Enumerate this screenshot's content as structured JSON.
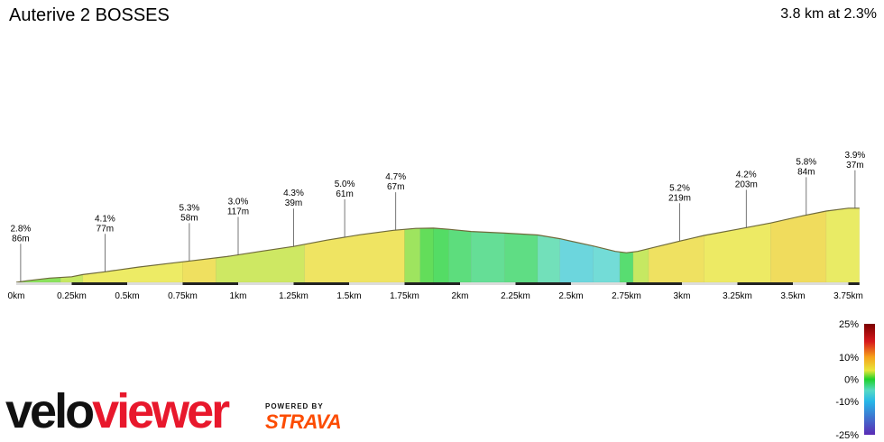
{
  "header": {
    "title": "Auterive 2 BOSSES",
    "summary": "3.8 km at 2.3%"
  },
  "chart_data": {
    "type": "area",
    "title": "Auterive 2 BOSSES",
    "xlabel": "",
    "ylabel": "",
    "x_unit": "km",
    "xlim": [
      0,
      3.8
    ],
    "x_ticks": [
      "0km",
      "0.25km",
      "0.5km",
      "0.75km",
      "1km",
      "1.25km",
      "1.5km",
      "1.75km",
      "2km",
      "2.25km",
      "2.5km",
      "2.75km",
      "3km",
      "3.25km",
      "3.5km",
      "3.75km"
    ],
    "profile": [
      [
        0.0,
        0.0
      ],
      [
        0.05,
        0.7
      ],
      [
        0.15,
        1.8
      ],
      [
        0.25,
        2.4
      ],
      [
        0.3,
        3.3
      ],
      [
        0.4,
        4.5
      ],
      [
        0.55,
        6.5
      ],
      [
        0.7,
        8.2
      ],
      [
        0.8,
        9.3
      ],
      [
        0.95,
        11.0
      ],
      [
        1.1,
        13.2
      ],
      [
        1.25,
        15.3
      ],
      [
        1.4,
        18.0
      ],
      [
        1.55,
        20.3
      ],
      [
        1.7,
        22.2
      ],
      [
        1.8,
        23.0
      ],
      [
        1.88,
        23.1
      ],
      [
        1.95,
        22.6
      ],
      [
        2.05,
        21.7
      ],
      [
        2.2,
        21.0
      ],
      [
        2.35,
        20.2
      ],
      [
        2.45,
        18.6
      ],
      [
        2.6,
        15.5
      ],
      [
        2.7,
        13.2
      ],
      [
        2.75,
        12.6
      ],
      [
        2.8,
        13.2
      ],
      [
        2.9,
        15.5
      ],
      [
        3.0,
        17.8
      ],
      [
        3.1,
        20.0
      ],
      [
        3.25,
        22.6
      ],
      [
        3.4,
        25.3
      ],
      [
        3.55,
        28.5
      ],
      [
        3.65,
        30.4
      ],
      [
        3.75,
        31.6
      ],
      [
        3.8,
        31.6
      ]
    ],
    "segments": [
      {
        "from": 0.0,
        "to": 0.2,
        "gradient_pct": 1.5
      },
      {
        "from": 0.2,
        "to": 0.3,
        "gradient_pct": 3.0
      },
      {
        "from": 0.3,
        "to": 0.75,
        "gradient_pct": 4.0
      },
      {
        "from": 0.75,
        "to": 0.9,
        "gradient_pct": 5.3
      },
      {
        "from": 0.9,
        "to": 1.3,
        "gradient_pct": 3.2
      },
      {
        "from": 1.3,
        "to": 1.75,
        "gradient_pct": 4.8
      },
      {
        "from": 1.75,
        "to": 1.82,
        "gradient_pct": 2.0
      },
      {
        "from": 1.82,
        "to": 1.88,
        "gradient_pct": 0.5
      },
      {
        "from": 1.88,
        "to": 1.95,
        "gradient_pct": -0.5
      },
      {
        "from": 1.95,
        "to": 2.05,
        "gradient_pct": -1.5
      },
      {
        "from": 2.05,
        "to": 2.2,
        "gradient_pct": -2.5
      },
      {
        "from": 2.2,
        "to": 2.35,
        "gradient_pct": -1.8
      },
      {
        "from": 2.35,
        "to": 2.45,
        "gradient_pct": -4.0
      },
      {
        "from": 2.45,
        "to": 2.6,
        "gradient_pct": -7.0
      },
      {
        "from": 2.6,
        "to": 2.72,
        "gradient_pct": -6.0
      },
      {
        "from": 2.72,
        "to": 2.78,
        "gradient_pct": -1.0
      },
      {
        "from": 2.78,
        "to": 2.85,
        "gradient_pct": 3.0
      },
      {
        "from": 2.85,
        "to": 3.1,
        "gradient_pct": 5.2
      },
      {
        "from": 3.1,
        "to": 3.4,
        "gradient_pct": 4.2
      },
      {
        "from": 3.4,
        "to": 3.65,
        "gradient_pct": 5.8
      },
      {
        "from": 3.65,
        "to": 3.8,
        "gradient_pct": 3.9
      }
    ],
    "annotations": [
      {
        "x": 0.02,
        "grade": "2.8%",
        "length": "86m"
      },
      {
        "x": 0.4,
        "grade": "4.1%",
        "length": "77m"
      },
      {
        "x": 0.78,
        "grade": "5.3%",
        "length": "58m"
      },
      {
        "x": 1.0,
        "grade": "3.0%",
        "length": "117m"
      },
      {
        "x": 1.25,
        "grade": "4.3%",
        "length": "39m"
      },
      {
        "x": 1.48,
        "grade": "5.0%",
        "length": "61m"
      },
      {
        "x": 1.71,
        "grade": "4.7%",
        "length": "67m"
      },
      {
        "x": 2.99,
        "grade": "5.2%",
        "length": "219m"
      },
      {
        "x": 3.29,
        "grade": "4.2%",
        "length": "203m"
      },
      {
        "x": 3.56,
        "grade": "5.8%",
        "length": "84m"
      },
      {
        "x": 3.78,
        "grade": "3.9%",
        "length": "37m"
      }
    ],
    "color_scale": {
      "labels": [
        "25%",
        "10%",
        "0%",
        "-10%",
        "-25%"
      ],
      "stops": [
        {
          "pct": 25,
          "color": "#7a0000"
        },
        {
          "pct": 17,
          "color": "#d7191c"
        },
        {
          "pct": 10,
          "color": "#f6a21a"
        },
        {
          "pct": 4,
          "color": "#e8e63a"
        },
        {
          "pct": 0,
          "color": "#1ed12a"
        },
        {
          "pct": -5,
          "color": "#55d9c5"
        },
        {
          "pct": -10,
          "color": "#26b6e8"
        },
        {
          "pct": -25,
          "color": "#5a2bb5"
        }
      ]
    }
  },
  "branding": {
    "logo_part1": "velo",
    "logo_part2": "viewer",
    "powered_by": "POWERED BY",
    "strava": "STRAVA"
  }
}
